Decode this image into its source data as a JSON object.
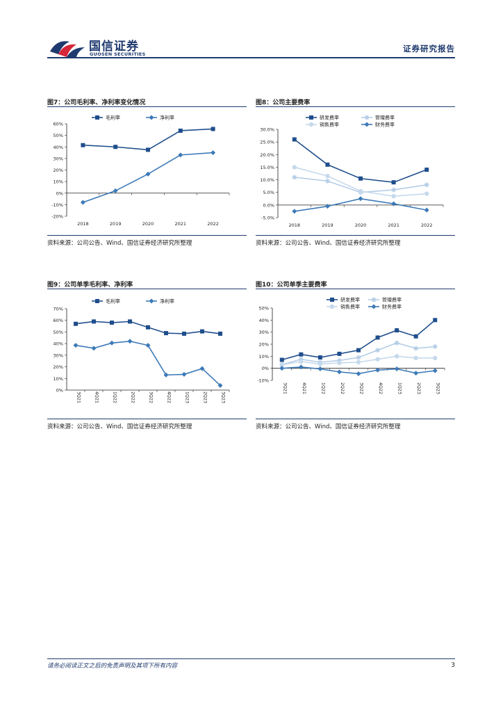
{
  "header": {
    "brand_cn": "国信证券",
    "brand_en": "GUOSEN SECURITIES",
    "report_type": "证券研究报告"
  },
  "footer": {
    "disclaimer": "请务必阅读正文之后的免责声明及其项下所有内容",
    "page_number": "3"
  },
  "colors": {
    "navy": "#1f3a6e",
    "dark_blue": "#1f4e8c",
    "mid_blue": "#3d7ab8",
    "light_blue": "#b4cde6",
    "pale_blue": "#c6d9ec"
  },
  "chart_data": [
    {
      "id": "fig7",
      "type": "line",
      "figure_title": "图7：公司毛利率、净利率变化情况",
      "source": "资料来源：公司公告、Wind、国信证券经济研究所整理",
      "categories": [
        "2018",
        "2019",
        "2020",
        "2021",
        "2022"
      ],
      "y_ticks": [
        "60%",
        "50%",
        "40%",
        "30%",
        "20%",
        "10%",
        "0%",
        "-10%",
        "-20%"
      ],
      "ylim": [
        -20,
        60
      ],
      "series": [
        {
          "name": "毛利率",
          "color": "#1f4e8c",
          "marker": "square",
          "values": [
            41.5,
            40,
            37.5,
            54,
            55.5
          ]
        },
        {
          "name": "净利率",
          "color": "#3d7ab8",
          "marker": "diamond",
          "values": [
            -8,
            2,
            16.5,
            33,
            35
          ]
        }
      ]
    },
    {
      "id": "fig8",
      "type": "line",
      "figure_title": "图8：公司主要费率",
      "source": "资料来源：公司公告、Wind、国信证券经济研究所整理",
      "categories": [
        "2018",
        "2019",
        "2020",
        "2021",
        "2022"
      ],
      "y_ticks": [
        "30.0%",
        "25.0%",
        "20.0%",
        "15.0%",
        "10.0%",
        "5.0%",
        "0.0%",
        "-5.0%"
      ],
      "ylim": [
        -5,
        30
      ],
      "series": [
        {
          "name": "研发费率",
          "color": "#1f4e8c",
          "marker": "square",
          "values": [
            26,
            16,
            10.5,
            9,
            14
          ]
        },
        {
          "name": "管理费率",
          "color": "#b4cde6",
          "marker": "star",
          "values": [
            11,
            9.5,
            5,
            6,
            8
          ]
        },
        {
          "name": "销售费率",
          "color": "#c6d9ec",
          "marker": "circle",
          "values": [
            15,
            11.5,
            5.5,
            3.5,
            4.5
          ]
        },
        {
          "name": "财务费率",
          "color": "#3d7ab8",
          "marker": "diamond",
          "values": [
            -2.5,
            -0.5,
            2.5,
            0.5,
            -2
          ]
        }
      ]
    },
    {
      "id": "fig9",
      "type": "line",
      "figure_title": "图9：公司单季毛利率、净利率",
      "source": "资料来源：公司公告、Wind、国信证券经济研究所整理",
      "categories": [
        "3Q21",
        "4Q21",
        "1Q22",
        "2Q22",
        "3Q22",
        "4Q22",
        "1Q23",
        "2Q23",
        "3Q23"
      ],
      "y_ticks": [
        "70%",
        "60%",
        "50%",
        "40%",
        "30%",
        "20%",
        "10%",
        "0%"
      ],
      "ylim": [
        0,
        70
      ],
      "series": [
        {
          "name": "毛利率",
          "color": "#1f4e8c",
          "marker": "square",
          "values": [
            57,
            59,
            58,
            59,
            54,
            49,
            48.5,
            50.5,
            48.5
          ]
        },
        {
          "name": "净利率",
          "color": "#3d7ab8",
          "marker": "diamond",
          "values": [
            38.5,
            36,
            40.5,
            42,
            38.5,
            13,
            13.5,
            18.5,
            4
          ]
        }
      ]
    },
    {
      "id": "fig10",
      "type": "line",
      "figure_title": "图10：公司单季主要费率",
      "source": "资料来源：公司公告、Wind、国信证券经济研究所整理",
      "categories": [
        "3Q21",
        "4Q21",
        "1Q22",
        "2Q22",
        "3Q22",
        "4Q22",
        "1Q23",
        "2Q23",
        "3Q23"
      ],
      "y_ticks": [
        "50%",
        "40%",
        "30%",
        "20%",
        "10%",
        "0%",
        "-10%"
      ],
      "ylim": [
        -10,
        50
      ],
      "series": [
        {
          "name": "研发费率",
          "color": "#1f4e8c",
          "marker": "square",
          "values": [
            7,
            11.5,
            9,
            12,
            15,
            25.5,
            31.5,
            26.5,
            40
          ]
        },
        {
          "name": "管理费率",
          "color": "#b4cde6",
          "marker": "star",
          "values": [
            3,
            7.5,
            5,
            6.5,
            9,
            15,
            21,
            16.5,
            18
          ]
        },
        {
          "name": "销售费率",
          "color": "#c6d9ec",
          "marker": "circle",
          "values": [
            3,
            5.5,
            3.5,
            4.5,
            5,
            7.5,
            10,
            8.5,
            8.5
          ]
        },
        {
          "name": "财务费率",
          "color": "#3d7ab8",
          "marker": "diamond",
          "values": [
            0,
            1,
            -0.5,
            -3,
            -4.5,
            -1.5,
            -0.5,
            -4,
            -2
          ]
        }
      ]
    }
  ]
}
